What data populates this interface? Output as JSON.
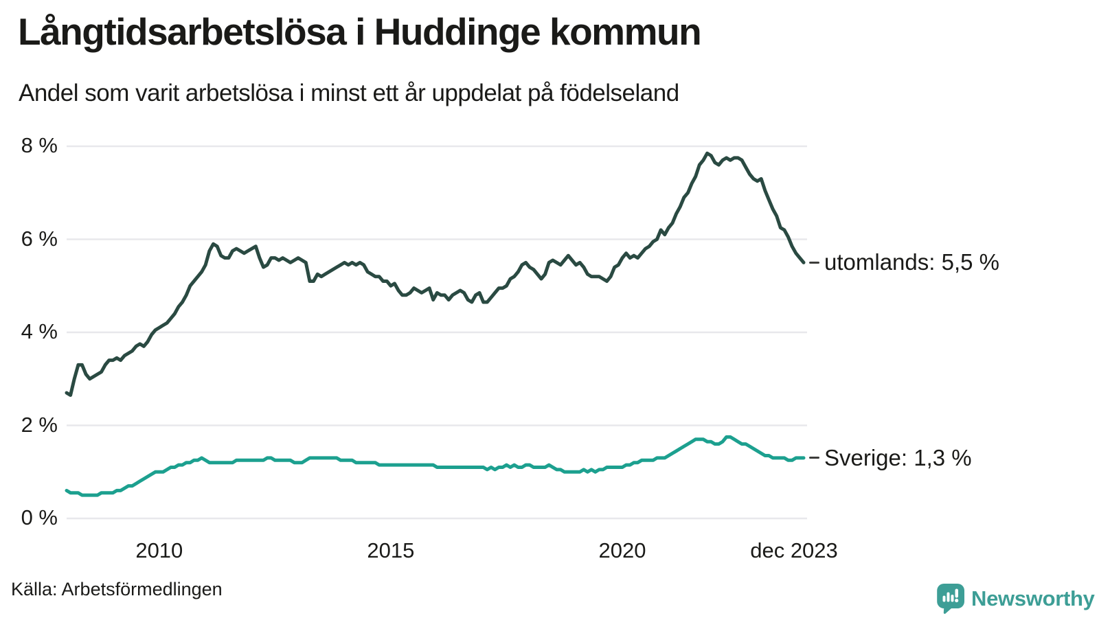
{
  "header": {
    "title": "Långtidsarbetslösa i Huddinge kommun",
    "subtitle": "Andel som varit arbetslösa i minst ett år uppdelat på födelseland"
  },
  "footer": {
    "source": "Källa: Arbetsförmedlingen",
    "logo_text": "Newsworthy"
  },
  "colors": {
    "utomlands_line": "#2a4a42",
    "sverige_line": "#1ca08f",
    "gridline": "#e8e8ec",
    "text": "#1a1a18",
    "label_dash": "#3c3c3a",
    "logo_teal": "#3d9e96",
    "background": "#ffffff"
  },
  "chart_data": {
    "type": "line",
    "title": "Långtidsarbetslösa i Huddinge kommun",
    "subtitle": "Andel som varit arbetslösa i minst ett år uppdelat på födelseland",
    "unit": "%",
    "x_start": "2008-01",
    "x_end": "2023-12",
    "x_interval": "monthly",
    "ylim": [
      0,
      8
    ],
    "grid": "horizontal-only",
    "legend": "end-of-line-labels",
    "y_ticks": [
      {
        "label": "8 %",
        "value": 8
      },
      {
        "label": "6 %",
        "value": 6
      },
      {
        "label": "4 %",
        "value": 4
      },
      {
        "label": "2 %",
        "value": 2
      },
      {
        "label": "0 %",
        "value": 0
      }
    ],
    "x_ticks": [
      {
        "label": "2010",
        "month_index": 24
      },
      {
        "label": "2015",
        "month_index": 84
      },
      {
        "label": "2020",
        "month_index": 144
      },
      {
        "label": "dec 2023",
        "month_index": 191
      }
    ],
    "series": [
      {
        "name": "utomlands",
        "end_label": "utomlands: 5,5 %",
        "end_value_text": "5,5 %",
        "color": "#2a4a42",
        "values": [
          2.7,
          2.65,
          3.0,
          3.3,
          3.3,
          3.1,
          3.0,
          3.05,
          3.1,
          3.15,
          3.3,
          3.4,
          3.4,
          3.45,
          3.4,
          3.5,
          3.55,
          3.6,
          3.7,
          3.75,
          3.7,
          3.8,
          3.95,
          4.05,
          4.1,
          4.15,
          4.2,
          4.3,
          4.4,
          4.55,
          4.65,
          4.8,
          5.0,
          5.1,
          5.2,
          5.3,
          5.45,
          5.75,
          5.9,
          5.85,
          5.65,
          5.6,
          5.6,
          5.75,
          5.8,
          5.75,
          5.7,
          5.75,
          5.8,
          5.85,
          5.6,
          5.4,
          5.45,
          5.6,
          5.6,
          5.55,
          5.6,
          5.55,
          5.5,
          5.55,
          5.6,
          5.55,
          5.5,
          5.1,
          5.1,
          5.25,
          5.2,
          5.25,
          5.3,
          5.35,
          5.4,
          5.45,
          5.5,
          5.45,
          5.5,
          5.45,
          5.5,
          5.45,
          5.3,
          5.25,
          5.2,
          5.2,
          5.1,
          5.1,
          5.0,
          5.05,
          4.9,
          4.8,
          4.8,
          4.85,
          4.95,
          4.9,
          4.85,
          4.9,
          4.95,
          4.7,
          4.85,
          4.8,
          4.8,
          4.7,
          4.8,
          4.85,
          4.9,
          4.85,
          4.7,
          4.65,
          4.8,
          4.85,
          4.65,
          4.65,
          4.75,
          4.85,
          4.95,
          4.95,
          5.0,
          5.15,
          5.2,
          5.3,
          5.45,
          5.5,
          5.4,
          5.35,
          5.25,
          5.15,
          5.25,
          5.5,
          5.55,
          5.5,
          5.45,
          5.55,
          5.65,
          5.55,
          5.45,
          5.5,
          5.4,
          5.25,
          5.2,
          5.2,
          5.2,
          5.15,
          5.1,
          5.2,
          5.4,
          5.45,
          5.6,
          5.7,
          5.6,
          5.65,
          5.6,
          5.7,
          5.8,
          5.85,
          5.95,
          6.0,
          6.2,
          6.1,
          6.25,
          6.35,
          6.55,
          6.7,
          6.9,
          7.0,
          7.2,
          7.35,
          7.6,
          7.7,
          7.85,
          7.8,
          7.65,
          7.6,
          7.7,
          7.75,
          7.7,
          7.75,
          7.75,
          7.7,
          7.55,
          7.4,
          7.3,
          7.25,
          7.3,
          7.05,
          6.85,
          6.65,
          6.5,
          6.25,
          6.2,
          6.05,
          5.85,
          5.7,
          5.6,
          5.5
        ]
      },
      {
        "name": "Sverige",
        "end_label": "Sverige: 1,3 %",
        "end_value_text": "1,3 %",
        "color": "#1ca08f",
        "values": [
          0.6,
          0.55,
          0.55,
          0.55,
          0.5,
          0.5,
          0.5,
          0.5,
          0.5,
          0.55,
          0.55,
          0.55,
          0.55,
          0.6,
          0.6,
          0.65,
          0.7,
          0.7,
          0.75,
          0.8,
          0.85,
          0.9,
          0.95,
          1.0,
          1.0,
          1.0,
          1.05,
          1.1,
          1.1,
          1.15,
          1.15,
          1.2,
          1.2,
          1.25,
          1.25,
          1.3,
          1.25,
          1.2,
          1.2,
          1.2,
          1.2,
          1.2,
          1.2,
          1.2,
          1.25,
          1.25,
          1.25,
          1.25,
          1.25,
          1.25,
          1.25,
          1.25,
          1.3,
          1.3,
          1.25,
          1.25,
          1.25,
          1.25,
          1.25,
          1.2,
          1.2,
          1.2,
          1.25,
          1.3,
          1.3,
          1.3,
          1.3,
          1.3,
          1.3,
          1.3,
          1.3,
          1.25,
          1.25,
          1.25,
          1.25,
          1.2,
          1.2,
          1.2,
          1.2,
          1.2,
          1.2,
          1.15,
          1.15,
          1.15,
          1.15,
          1.15,
          1.15,
          1.15,
          1.15,
          1.15,
          1.15,
          1.15,
          1.15,
          1.15,
          1.15,
          1.15,
          1.1,
          1.1,
          1.1,
          1.1,
          1.1,
          1.1,
          1.1,
          1.1,
          1.1,
          1.1,
          1.1,
          1.1,
          1.1,
          1.05,
          1.1,
          1.05,
          1.1,
          1.1,
          1.15,
          1.1,
          1.15,
          1.1,
          1.1,
          1.15,
          1.15,
          1.1,
          1.1,
          1.1,
          1.1,
          1.15,
          1.1,
          1.05,
          1.05,
          1.0,
          1.0,
          1.0,
          1.0,
          1.0,
          1.05,
          1.0,
          1.05,
          1.0,
          1.05,
          1.05,
          1.1,
          1.1,
          1.1,
          1.1,
          1.1,
          1.15,
          1.15,
          1.2,
          1.2,
          1.25,
          1.25,
          1.25,
          1.25,
          1.3,
          1.3,
          1.3,
          1.35,
          1.4,
          1.45,
          1.5,
          1.55,
          1.6,
          1.65,
          1.7,
          1.7,
          1.7,
          1.65,
          1.65,
          1.6,
          1.6,
          1.65,
          1.75,
          1.75,
          1.7,
          1.65,
          1.6,
          1.6,
          1.55,
          1.5,
          1.45,
          1.4,
          1.35,
          1.35,
          1.3,
          1.3,
          1.3,
          1.3,
          1.25,
          1.25,
          1.3,
          1.3,
          1.3
        ]
      }
    ]
  }
}
